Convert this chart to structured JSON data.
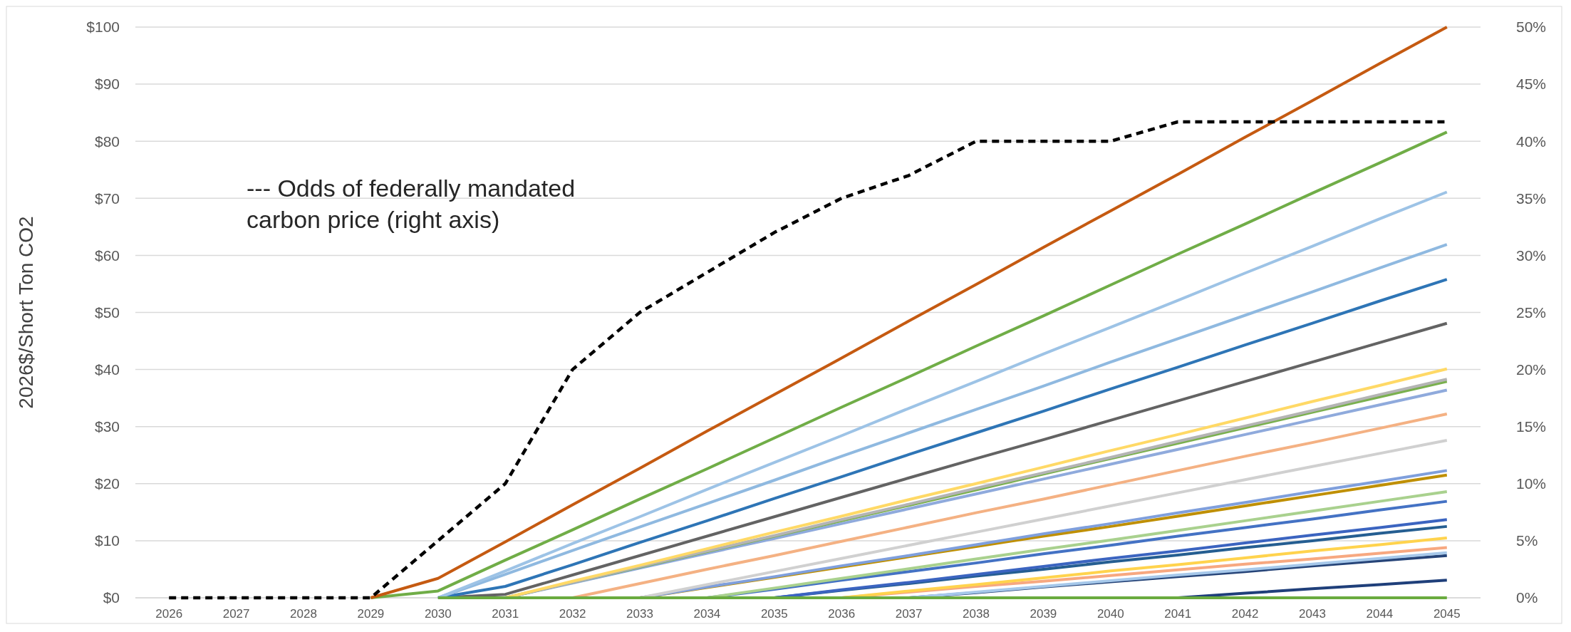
{
  "chart_data": {
    "type": "line",
    "ylabel": "2026$/Short Ton CO2",
    "annotations": [
      "--- Odds of federally mandated carbon price (right axis)"
    ],
    "categories": [
      "2026",
      "2027",
      "2028",
      "2029",
      "2030",
      "2031",
      "2032",
      "2033",
      "2034",
      "2035",
      "2036",
      "2037",
      "2038",
      "2039",
      "2040",
      "2041",
      "2042",
      "2043",
      "2044",
      "2045"
    ],
    "ylim": [
      0,
      100
    ],
    "yticks": [
      {
        "value": 0,
        "label": "$0"
      },
      {
        "value": 10,
        "label": "$10"
      },
      {
        "value": 20,
        "label": "$20"
      },
      {
        "value": 30,
        "label": "$30"
      },
      {
        "value": 40,
        "label": "$40"
      },
      {
        "value": 50,
        "label": "$50"
      },
      {
        "value": 60,
        "label": "$60"
      },
      {
        "value": 70,
        "label": "$70"
      },
      {
        "value": 80,
        "label": "$80"
      },
      {
        "value": 90,
        "label": "$90"
      },
      {
        "value": 100,
        "label": "$100"
      }
    ],
    "y2lim": [
      0,
      50
    ],
    "y2ticks": [
      {
        "value": 0,
        "label": "0%"
      },
      {
        "value": 5,
        "label": "5%"
      },
      {
        "value": 10,
        "label": "10%"
      },
      {
        "value": 15,
        "label": "15%"
      },
      {
        "value": 20,
        "label": "20%"
      },
      {
        "value": 25,
        "label": "25%"
      },
      {
        "value": 30,
        "label": "30%"
      },
      {
        "value": 35,
        "label": "35%"
      },
      {
        "value": 40,
        "label": "40%"
      },
      {
        "value": 45,
        "label": "45%"
      },
      {
        "value": 50,
        "label": "50%"
      }
    ],
    "grid": "y",
    "marker": "none",
    "line_style": "solid",
    "series": [
      {
        "color": "#1f3f7a",
        "values": [
          null,
          null,
          null,
          null,
          null,
          null,
          null,
          null,
          null,
          null,
          null,
          null,
          null,
          null,
          null,
          0,
          0.8,
          1.6,
          2.3,
          3.1
        ]
      },
      {
        "color": "#264478",
        "values": [
          null,
          null,
          null,
          null,
          null,
          null,
          null,
          null,
          null,
          null,
          null,
          0,
          0.9,
          1.9,
          2.8,
          3.7,
          4.6,
          5.6,
          6.5,
          7.4
        ]
      },
      {
        "color": "#a6c8ea",
        "values": [
          null,
          null,
          null,
          null,
          null,
          null,
          null,
          null,
          null,
          null,
          null,
          0,
          1.0,
          2.0,
          3.0,
          4.0,
          4.9,
          5.9,
          6.9,
          7.9
        ]
      },
      {
        "color": "#f7a880",
        "values": [
          null,
          null,
          null,
          null,
          null,
          null,
          null,
          null,
          null,
          null,
          0,
          1.0,
          2.0,
          2.9,
          3.9,
          4.9,
          5.9,
          6.8,
          7.8,
          8.8
        ]
      },
      {
        "color": "#ffd34d",
        "values": [
          null,
          null,
          null,
          null,
          null,
          null,
          null,
          null,
          null,
          null,
          0,
          1.2,
          2.3,
          3.5,
          4.7,
          5.8,
          7.0,
          8.2,
          9.3,
          10.5
        ]
      },
      {
        "color": "#255e91",
        "values": [
          null,
          null,
          null,
          null,
          null,
          null,
          null,
          null,
          null,
          0,
          1.3,
          2.5,
          3.8,
          5.0,
          6.3,
          7.5,
          8.8,
          10.0,
          11.3,
          12.5
        ]
      },
      {
        "color": "#3b64c0",
        "values": [
          null,
          null,
          null,
          null,
          null,
          null,
          null,
          null,
          null,
          0,
          1.4,
          2.7,
          4.1,
          5.5,
          6.9,
          8.2,
          9.6,
          11.0,
          12.3,
          13.7
        ]
      },
      {
        "color": "#4472c4",
        "values": [
          null,
          null,
          null,
          null,
          null,
          null,
          null,
          null,
          0,
          1.5,
          3.1,
          4.6,
          6.1,
          7.7,
          9.2,
          10.8,
          12.3,
          13.8,
          15.4,
          16.9
        ]
      },
      {
        "color": "#a9d18e",
        "values": [
          null,
          null,
          null,
          null,
          null,
          null,
          null,
          null,
          0,
          1.7,
          3.4,
          5.1,
          6.8,
          8.5,
          10.1,
          11.8,
          13.5,
          15.2,
          16.9,
          18.6
        ]
      },
      {
        "color": "#bf8f00",
        "values": [
          null,
          null,
          null,
          null,
          null,
          null,
          null,
          0,
          1.8,
          3.6,
          5.4,
          7.2,
          9.0,
          10.8,
          12.5,
          14.3,
          16.1,
          17.9,
          19.7,
          21.5
        ]
      },
      {
        "color": "#7f9fdc",
        "values": [
          null,
          null,
          null,
          null,
          null,
          null,
          null,
          0,
          1.9,
          3.7,
          5.6,
          7.4,
          9.3,
          11.2,
          13.0,
          14.9,
          16.7,
          18.6,
          20.4,
          22.3
        ]
      },
      {
        "color": "#d0d0d0",
        "values": [
          null,
          null,
          null,
          null,
          null,
          null,
          null,
          0,
          2.3,
          4.6,
          6.9,
          9.2,
          11.5,
          13.8,
          16.1,
          18.4,
          20.7,
          23.0,
          25.3,
          27.6
        ]
      },
      {
        "color": "#f4b183",
        "values": [
          null,
          null,
          null,
          null,
          null,
          null,
          0,
          2.5,
          5.0,
          7.4,
          9.9,
          12.4,
          14.9,
          17.3,
          19.8,
          22.3,
          24.8,
          27.2,
          29.7,
          32.2
        ]
      },
      {
        "color": "#8faadc",
        "values": [
          null,
          null,
          null,
          null,
          null,
          0,
          2.6,
          5.2,
          7.8,
          10.4,
          13.0,
          15.6,
          18.2,
          20.8,
          23.4,
          26.0,
          28.6,
          31.2,
          33.8,
          36.4
        ]
      },
      {
        "color": "#7ab04e",
        "values": [
          null,
          null,
          null,
          null,
          null,
          0,
          2.7,
          5.4,
          8.1,
          10.8,
          13.5,
          16.2,
          18.9,
          21.7,
          24.4,
          27.1,
          29.8,
          32.5,
          35.2,
          37.9
        ]
      },
      {
        "color": "#b4b4b4",
        "values": [
          null,
          null,
          null,
          null,
          null,
          0,
          2.7,
          5.5,
          8.2,
          10.9,
          13.7,
          16.4,
          19.2,
          21.9,
          24.6,
          27.4,
          30.1,
          32.8,
          35.6,
          38.3
        ]
      },
      {
        "color": "#ffd966",
        "values": [
          null,
          null,
          null,
          null,
          null,
          0,
          2.9,
          5.7,
          8.6,
          11.5,
          14.3,
          17.2,
          20.0,
          22.9,
          25.8,
          28.6,
          31.5,
          34.4,
          37.2,
          40.1
        ]
      },
      {
        "color": "#636363",
        "values": [
          null,
          null,
          null,
          null,
          0,
          0.6,
          4.0,
          7.4,
          10.8,
          14.2,
          17.6,
          21.0,
          24.4,
          27.7,
          31.1,
          34.5,
          37.9,
          41.3,
          44.7,
          48.1
        ]
      },
      {
        "color": "#2e75b6",
        "values": [
          null,
          null,
          null,
          null,
          0,
          2.0,
          5.8,
          9.7,
          13.5,
          17.4,
          21.2,
          25.1,
          28.9,
          32.7,
          36.6,
          40.4,
          44.3,
          48.1,
          52.0,
          55.8
        ]
      },
      {
        "color": "#8fb9e0",
        "values": [
          null,
          null,
          null,
          null,
          0,
          4.1,
          8.3,
          12.4,
          16.5,
          20.6,
          24.8,
          28.9,
          33.0,
          37.1,
          41.3,
          45.4,
          49.5,
          53.6,
          57.8,
          61.9
        ]
      },
      {
        "color": "#9dc3e6",
        "values": [
          null,
          null,
          null,
          null,
          0,
          4.7,
          9.5,
          14.2,
          19.0,
          23.7,
          28.4,
          33.2,
          37.9,
          42.7,
          47.4,
          52.1,
          56.9,
          61.6,
          66.4,
          71.1
        ]
      },
      {
        "color": "#70ad47",
        "values": [
          null,
          null,
          null,
          0,
          1.2,
          6.6,
          11.9,
          17.3,
          22.6,
          28.0,
          33.4,
          38.7,
          44.1,
          49.4,
          54.8,
          60.2,
          65.5,
          70.9,
          76.2,
          81.6
        ]
      },
      {
        "color": "#c55a11",
        "values": [
          null,
          null,
          null,
          0,
          3.4,
          9.8,
          16.3,
          22.7,
          29.2,
          35.6,
          42.0,
          48.5,
          54.9,
          61.4,
          67.8,
          74.2,
          80.7,
          87.1,
          93.6,
          100
        ]
      },
      {
        "color": "#6aab3f",
        "values": [
          null,
          null,
          null,
          null,
          0,
          0,
          0,
          0,
          0,
          0,
          0,
          0,
          0,
          0,
          0,
          0,
          0,
          0,
          0,
          0
        ]
      },
      {
        "color": "#000000",
        "axis": "y2",
        "line_style": "dashed",
        "values": [
          0,
          0,
          0,
          0,
          5,
          10,
          20,
          25,
          28.5,
          32,
          35,
          37,
          40,
          40,
          40,
          41.7,
          41.7,
          41.7,
          41.7,
          41.7
        ]
      }
    ]
  }
}
